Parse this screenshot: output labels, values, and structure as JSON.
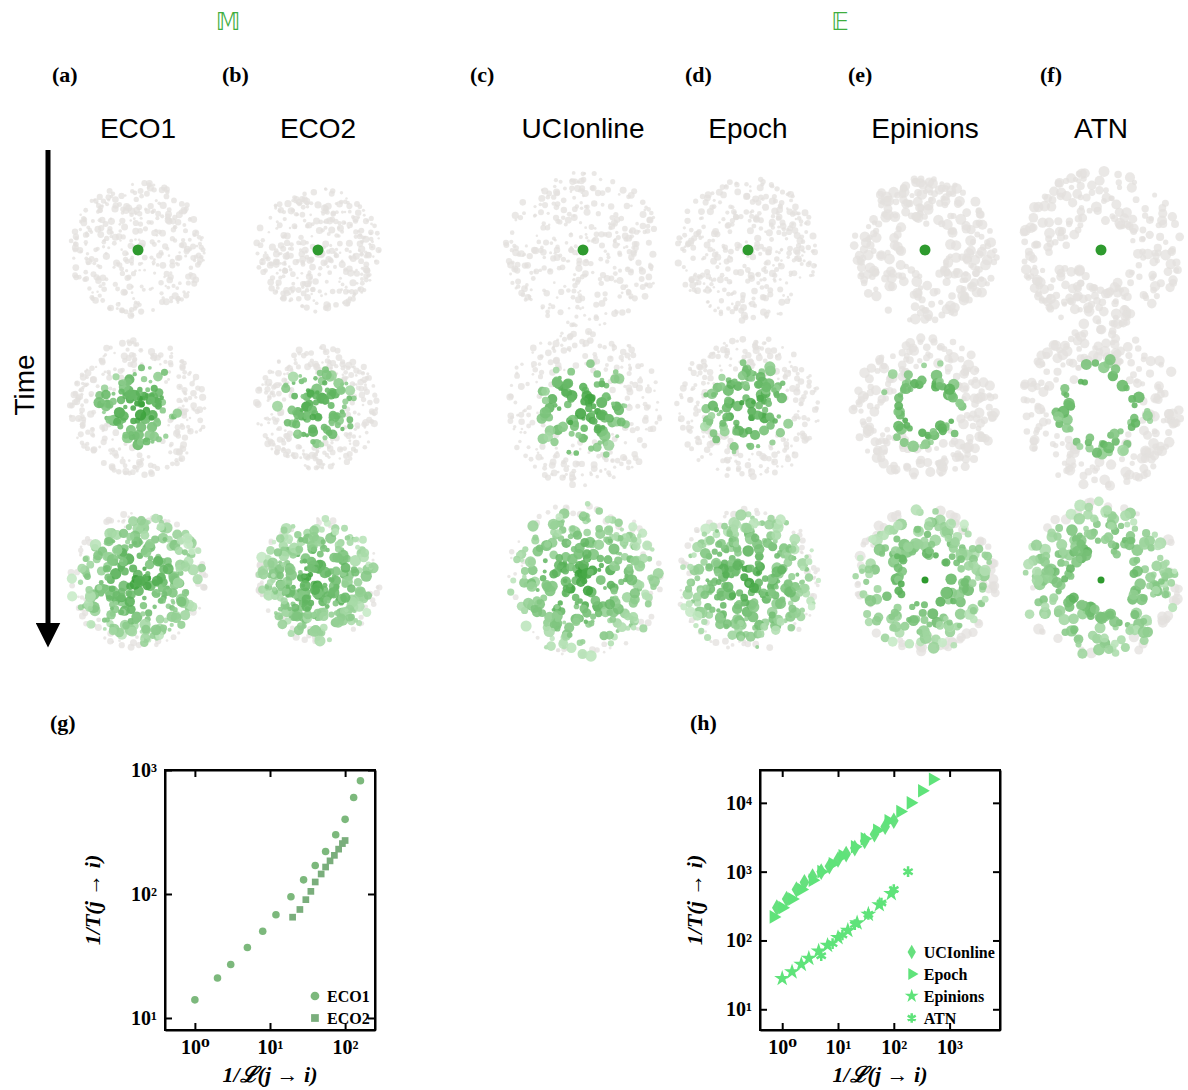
{
  "figure": {
    "time_label": "Time",
    "groups": [
      {
        "label": "𝕄",
        "panels": [
          {
            "letter": "(a)",
            "title": "ECO1"
          },
          {
            "letter": "(b)",
            "title": "ECO2"
          }
        ]
      },
      {
        "label": "𝔼",
        "panels": [
          {
            "letter": "(c)",
            "title": "UCIonline"
          },
          {
            "letter": "(d)",
            "title": "Epoch"
          },
          {
            "letter": "(e)",
            "title": "Epinions"
          },
          {
            "letter": "(f)",
            "title": "ATN"
          }
        ]
      }
    ]
  },
  "chart_data": [
    {
      "type": "scatter",
      "panel_label": "(g)",
      "x_label": "1/ℒ(j → i)",
      "y_label": "1/T(j → i)",
      "log": true,
      "xlim": [
        0.4,
        250
      ],
      "ylim": [
        8,
        1000
      ],
      "xticks": [
        {
          "value": 1,
          "label": "10⁰"
        },
        {
          "value": 10,
          "label": "10¹"
        },
        {
          "value": 100,
          "label": "10²"
        }
      ],
      "yticks": [
        {
          "value": 10,
          "label": "10¹"
        },
        {
          "value": 100,
          "label": "10²"
        },
        {
          "value": 1000,
          "label": "10³"
        }
      ],
      "legend": "lower right",
      "series": [
        {
          "name": "ECO1",
          "color": "#7cb87c",
          "marker": "circle",
          "x": [
            1,
            2,
            3,
            5,
            8,
            12,
            19,
            28,
            40,
            55,
            75,
            100,
            130,
            160
          ],
          "values": [
            14,
            21,
            27,
            37,
            50,
            68,
            95,
            130,
            170,
            220,
            300,
            400,
            600,
            820
          ]
        },
        {
          "name": "ECO2",
          "color": "#7aae7c",
          "marker": "square",
          "x": [
            20,
            25,
            30,
            35,
            40,
            48,
            55,
            63,
            72,
            82,
            92,
            100
          ],
          "values": [
            65,
            75,
            90,
            105,
            125,
            145,
            165,
            185,
            205,
            230,
            255,
            270
          ]
        }
      ]
    },
    {
      "type": "scatter",
      "panel_label": "(h)",
      "x_label": "1/ℒ(j → i)",
      "y_label": "1/T(j → i)",
      "log": true,
      "xlim": [
        0.4,
        8000
      ],
      "ylim": [
        5,
        30000
      ],
      "xticks": [
        {
          "value": 1,
          "label": "10⁰"
        },
        {
          "value": 10,
          "label": "10¹"
        },
        {
          "value": 100,
          "label": "10²"
        },
        {
          "value": 1000,
          "label": "10³"
        }
      ],
      "yticks": [
        {
          "value": 10,
          "label": "10¹"
        },
        {
          "value": 100,
          "label": "10²"
        },
        {
          "value": 1000,
          "label": "10³"
        },
        {
          "value": 10000,
          "label": "10⁴"
        }
      ],
      "legend": "lower right",
      "series": [
        {
          "name": "UCIonline",
          "color": "#66e07e",
          "marker": "diamond",
          "x": [
            0.8,
            1.2,
            1.8,
            2.5,
            3.5,
            5,
            7,
            10,
            14,
            20,
            30,
            45,
            70,
            100
          ],
          "values": [
            300,
            400,
            550,
            700,
            850,
            1000,
            1200,
            1500,
            1800,
            2200,
            2800,
            3500,
            4500,
            5500
          ]
        },
        {
          "name": "Epoch",
          "color": "#5fe37a",
          "marker": "triangle-right",
          "x": [
            0.7,
            1,
            1.5,
            2.2,
            3.5,
            5,
            8,
            12,
            20,
            30,
            50,
            80,
            130,
            200,
            320,
            500
          ],
          "values": [
            220,
            300,
            400,
            550,
            750,
            1000,
            1300,
            1700,
            2300,
            3000,
            4000,
            5500,
            7500,
            10000,
            15000,
            22000
          ]
        },
        {
          "name": "Epinions",
          "color": "#5fe37a",
          "marker": "star",
          "x": [
            1,
            1.5,
            2.2,
            3,
            4.5,
            6.5,
            10,
            15,
            22,
            35,
            55,
            90
          ],
          "values": [
            28,
            35,
            45,
            55,
            70,
            85,
            110,
            140,
            180,
            240,
            330,
            480
          ]
        },
        {
          "name": "ATN",
          "color": "#5fe37a",
          "marker": "asterisk",
          "x": [
            5,
            8,
            12,
            20,
            35,
            60,
            100,
            180
          ],
          "values": [
            60,
            90,
            120,
            170,
            240,
            350,
            550,
            1000
          ]
        }
      ]
    }
  ]
}
